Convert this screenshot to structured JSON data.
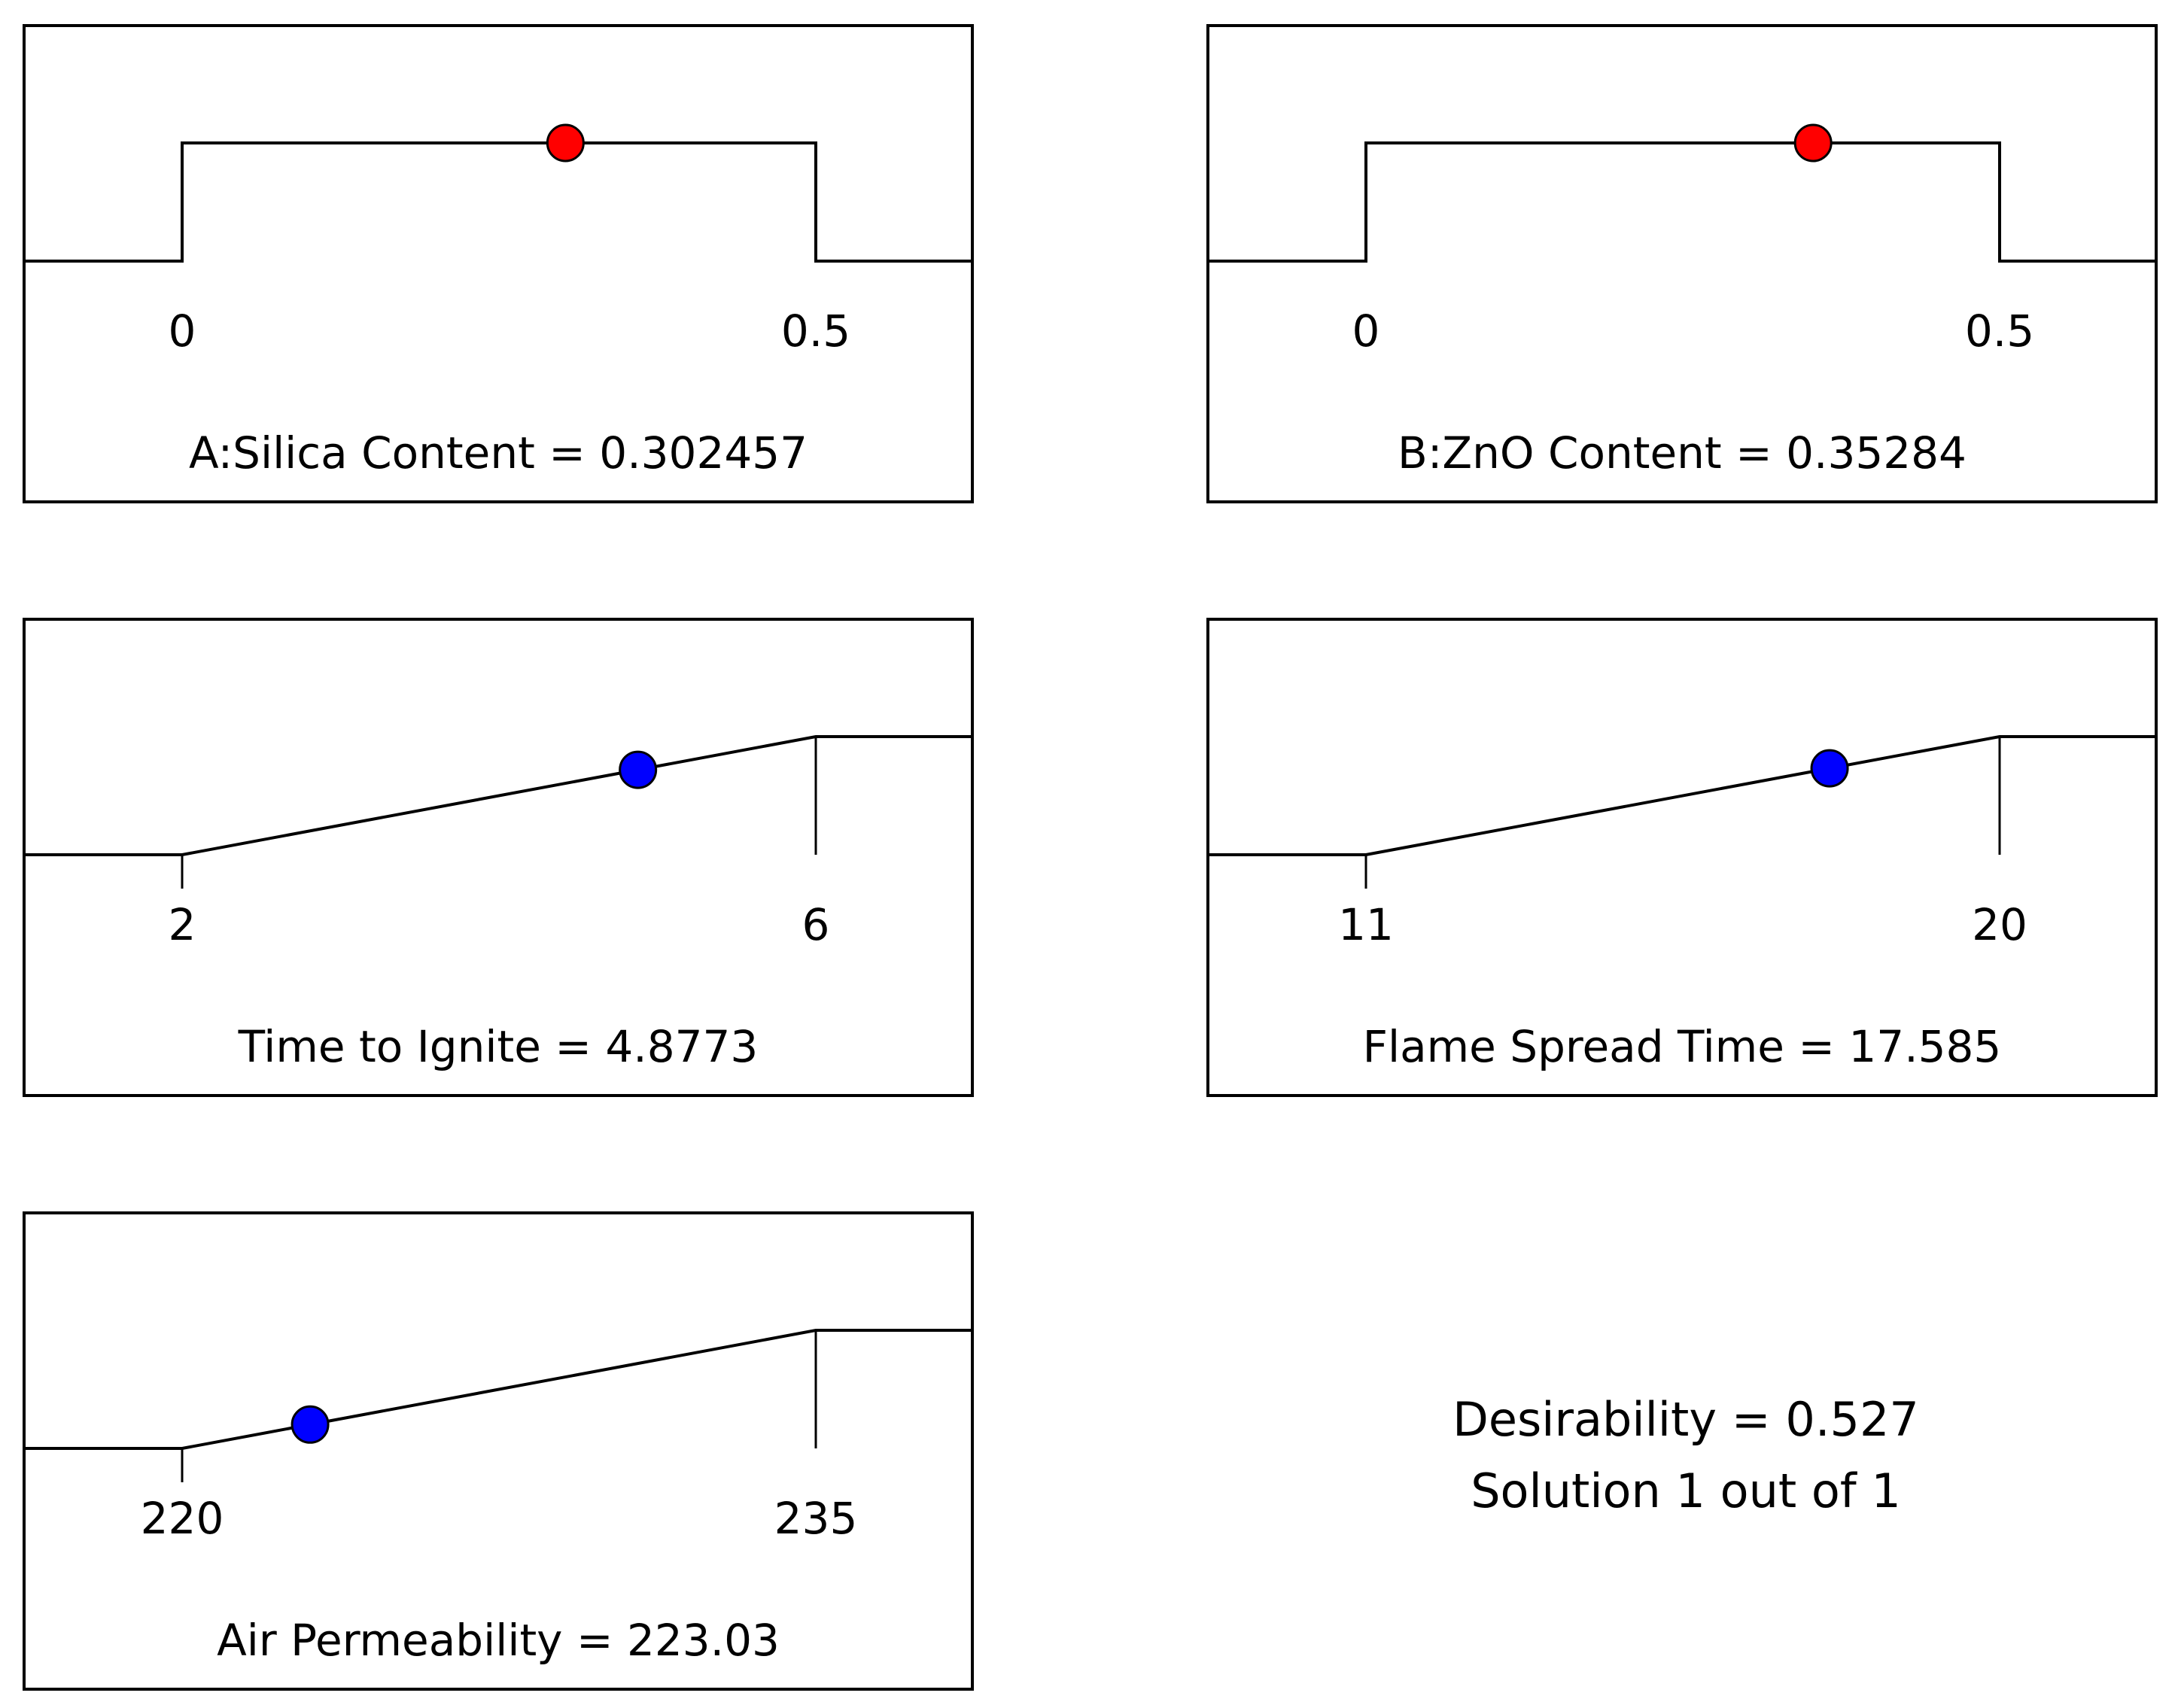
{
  "chart_data": {
    "type": "desirability-ramp",
    "panels": [
      {
        "label": "A:Silica Content = 0.302457",
        "kind": "range",
        "low": 0,
        "high": 0.5,
        "low_label": "0",
        "high_label": "0.5",
        "value": 0.302457,
        "dot_color": "#ff0000"
      },
      {
        "label": "B:ZnO Content = 0.35284",
        "kind": "range",
        "low": 0,
        "high": 0.5,
        "low_label": "0",
        "high_label": "0.5",
        "value": 0.35284,
        "dot_color": "#ff0000"
      },
      {
        "label": "Time to Ignite = 4.8773",
        "kind": "maximize",
        "low": 2,
        "high": 6,
        "low_label": "2",
        "high_label": "6",
        "value": 4.8773,
        "dot_color": "#0000ff"
      },
      {
        "label": "Flame Spread Time = 17.585",
        "kind": "maximize",
        "low": 11,
        "high": 20,
        "low_label": "11",
        "high_label": "20",
        "value": 17.585,
        "dot_color": "#0000ff"
      },
      {
        "label": "Air Permeability = 223.03",
        "kind": "maximize",
        "low": 220,
        "high": 235,
        "low_label": "220",
        "high_label": "235",
        "value": 223.03,
        "dot_color": "#0000ff"
      }
    ]
  },
  "summary": {
    "desirability": "Desirability = 0.527",
    "solution": "Solution 1 out of 1"
  }
}
